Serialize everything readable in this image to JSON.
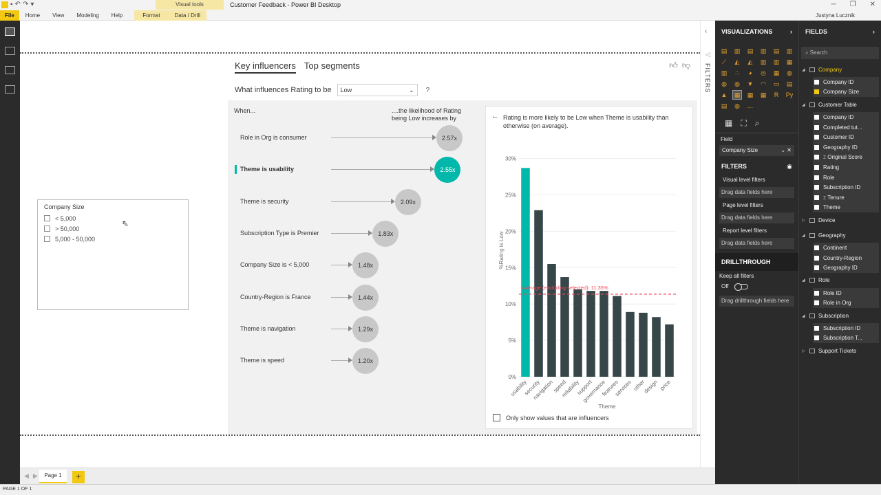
{
  "window": {
    "title": "Customer Feedback - Power BI Desktop",
    "context_tab": "Visual tools",
    "user": "Justyna Lucznik",
    "tabs": [
      "File",
      "Home",
      "View",
      "Modeling",
      "Help",
      "Format",
      "Data / Drill"
    ]
  },
  "slicer": {
    "title": "Company Size",
    "items": [
      "< 5,000",
      "> 50,000",
      "5,000 - 50,000"
    ]
  },
  "key_influencers": {
    "tabs": [
      "Key influencers",
      "Top segments"
    ],
    "question": "What influences Rating to be",
    "selected_value": "Low",
    "help": "?",
    "col_when": "When...",
    "col_likelihood": "....the likelihood of Rating being Low increases by",
    "influencers": [
      {
        "label": "Role in Org is consumer",
        "value": "2.57x",
        "multiplier": 2.57,
        "active": false
      },
      {
        "label": "Theme is usability",
        "value": "2.55x",
        "multiplier": 2.55,
        "active": true
      },
      {
        "label": "Theme is security",
        "value": "2.09x",
        "multiplier": 2.09,
        "active": false
      },
      {
        "label": "Subscription Type is Premier",
        "value": "1.83x",
        "multiplier": 1.83,
        "active": false
      },
      {
        "label": "Company Size is < 5,000",
        "value": "1.48x",
        "multiplier": 1.48,
        "active": false
      },
      {
        "label": "Country-Region is France",
        "value": "1.44x",
        "multiplier": 1.44,
        "active": false
      },
      {
        "label": "Theme is navigation",
        "value": "1.29x",
        "multiplier": 1.29,
        "active": false
      },
      {
        "label": "Theme is speed",
        "value": "1.20x",
        "multiplier": 1.2,
        "active": false
      }
    ],
    "detail_text": "Rating is more likely to be Low when Theme is usability than otherwise (on average).",
    "only_show": "Only show values that are influencers"
  },
  "chart_data": {
    "type": "bar",
    "title": "",
    "xlabel": "Theme",
    "ylabel": "%Rating is Low",
    "categories": [
      "usability",
      "security",
      "navigation",
      "speed",
      "reliability",
      "support",
      "governance",
      "features",
      "services",
      "other",
      "design",
      "price"
    ],
    "values": [
      28.7,
      22.9,
      15.5,
      13.7,
      12.0,
      11.8,
      11.8,
      11.1,
      8.9,
      8.8,
      8.2,
      7.2
    ],
    "highlight_index": 0,
    "ylim": [
      0,
      31
    ],
    "yticks": [
      "0%",
      "5%",
      "10%",
      "15%",
      "20%",
      "25%",
      "30%"
    ],
    "ytick_values": [
      0,
      5,
      10,
      15,
      20,
      25,
      30
    ],
    "average": 11.35,
    "average_label": "Average (excluding selected): 11.35%",
    "colors": {
      "highlight": "#01b8aa",
      "bar": "#374649",
      "average": "#e8495a"
    }
  },
  "filters_strip": {
    "label": "FILTERS"
  },
  "visualizations": {
    "header": "VISUALIZATIONS",
    "field_label": "Field",
    "field_value": "Company Size",
    "filters_header": "FILTERS",
    "visual_level": "Visual level filters",
    "page_level": "Page level filters",
    "report_level": "Report level filters",
    "drop_hint": "Drag data fields here",
    "drillthrough_header": "DRILLTHROUGH",
    "keep_all": "Keep all filters",
    "off": "Off",
    "drill_hint": "Drag drillthrough fields here"
  },
  "fields": {
    "header": "FIELDS",
    "search_placeholder": "Search",
    "tables": [
      {
        "name": "Company",
        "expanded": true,
        "highlight": true,
        "fields": [
          {
            "name": "Company ID",
            "checked": false,
            "sigma": false
          },
          {
            "name": "Company Size",
            "checked": true,
            "sigma": false
          }
        ]
      },
      {
        "name": "Customer Table",
        "expanded": true,
        "highlight": false,
        "fields": [
          {
            "name": "Company ID",
            "checked": false,
            "sigma": false
          },
          {
            "name": "Completed tut...",
            "checked": false,
            "sigma": false
          },
          {
            "name": "Customer ID",
            "checked": false,
            "sigma": false
          },
          {
            "name": "Geography ID",
            "checked": false,
            "sigma": false
          },
          {
            "name": "Original Score",
            "checked": false,
            "sigma": true
          },
          {
            "name": "Rating",
            "checked": false,
            "sigma": false
          },
          {
            "name": "Role",
            "checked": false,
            "sigma": false
          },
          {
            "name": "Subscription ID",
            "checked": false,
            "sigma": false
          },
          {
            "name": "Tenure",
            "checked": false,
            "sigma": true
          },
          {
            "name": "Theme",
            "checked": false,
            "sigma": false
          }
        ]
      },
      {
        "name": "Device",
        "expanded": false,
        "highlight": false,
        "fields": []
      },
      {
        "name": "Geography",
        "expanded": true,
        "highlight": false,
        "fields": [
          {
            "name": "Continent",
            "checked": false,
            "sigma": false
          },
          {
            "name": "Country-Region",
            "checked": false,
            "sigma": false
          },
          {
            "name": "Geography ID",
            "checked": false,
            "sigma": false
          }
        ]
      },
      {
        "name": "Role",
        "expanded": true,
        "highlight": false,
        "fields": [
          {
            "name": "Role ID",
            "checked": false,
            "sigma": false
          },
          {
            "name": "Role in Org",
            "checked": false,
            "sigma": false
          }
        ]
      },
      {
        "name": "Subscription",
        "expanded": true,
        "highlight": false,
        "fields": [
          {
            "name": "Subscription ID",
            "checked": false,
            "sigma": false
          },
          {
            "name": "Subscription T...",
            "checked": false,
            "sigma": false
          }
        ]
      },
      {
        "name": "Support Tickets",
        "expanded": false,
        "highlight": false,
        "fields": []
      }
    ]
  },
  "pages": {
    "current": "Page 1",
    "add": "+"
  },
  "status": "PAGE 1 OF 1"
}
